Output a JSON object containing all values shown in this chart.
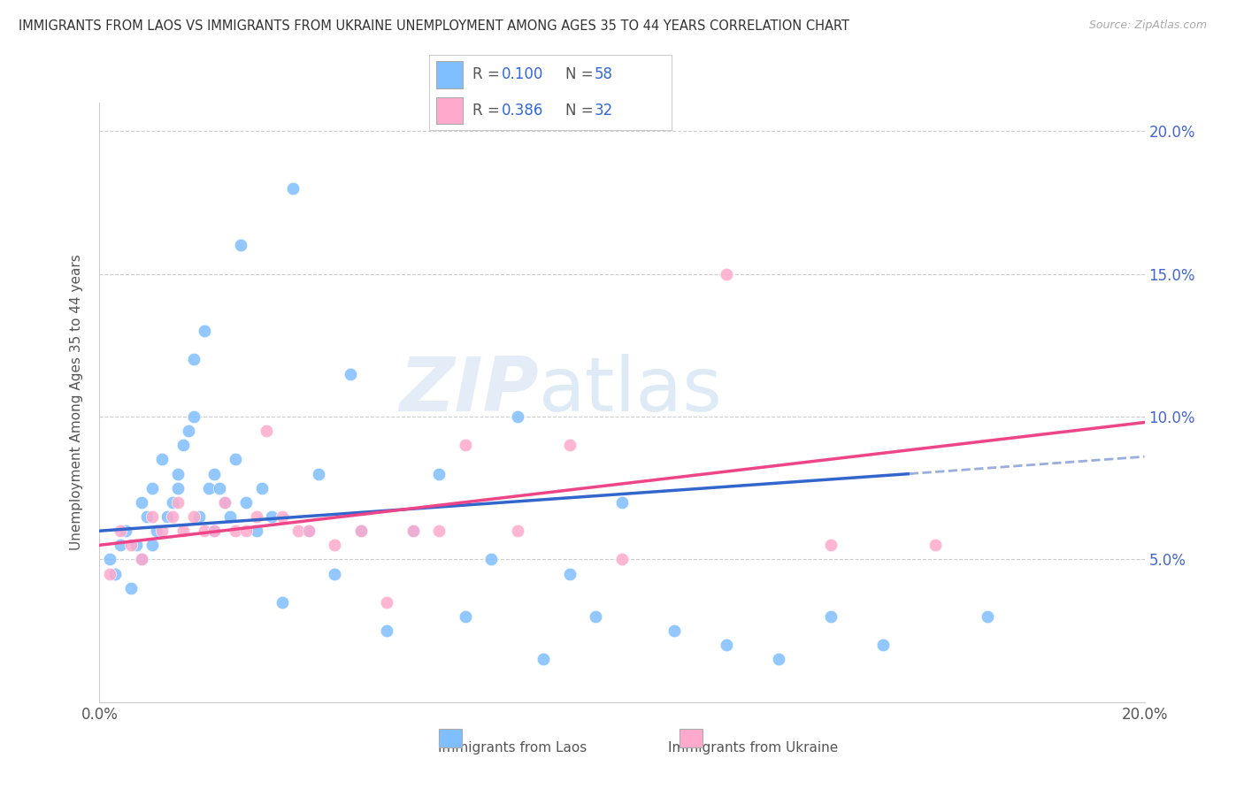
{
  "title": "IMMIGRANTS FROM LAOS VS IMMIGRANTS FROM UKRAINE UNEMPLOYMENT AMONG AGES 35 TO 44 YEARS CORRELATION CHART",
  "source": "Source: ZipAtlas.com",
  "ylabel": "Unemployment Among Ages 35 to 44 years",
  "xlim": [
    0.0,
    0.2
  ],
  "ylim": [
    0.0,
    0.21
  ],
  "laos_color": "#7fbfff",
  "ukraine_color": "#ffaacc",
  "laos_R": 0.1,
  "laos_N": 58,
  "ukraine_R": 0.386,
  "ukraine_N": 32,
  "laos_line_color": "#3366cc",
  "ukraine_line_color": "#ee4488",
  "laos_line_extend_color": "#99aedd",
  "watermark_zip": "ZIP",
  "watermark_atlas": "atlas",
  "laos_x": [
    0.002,
    0.003,
    0.004,
    0.005,
    0.006,
    0.007,
    0.008,
    0.008,
    0.009,
    0.01,
    0.01,
    0.011,
    0.012,
    0.013,
    0.014,
    0.015,
    0.015,
    0.016,
    0.017,
    0.018,
    0.018,
    0.019,
    0.02,
    0.021,
    0.022,
    0.022,
    0.023,
    0.024,
    0.025,
    0.026,
    0.027,
    0.028,
    0.03,
    0.031,
    0.033,
    0.035,
    0.037,
    0.04,
    0.042,
    0.045,
    0.048,
    0.05,
    0.055,
    0.06,
    0.065,
    0.07,
    0.075,
    0.08,
    0.085,
    0.09,
    0.095,
    0.1,
    0.11,
    0.12,
    0.13,
    0.14,
    0.15,
    0.17
  ],
  "laos_y": [
    0.05,
    0.045,
    0.055,
    0.06,
    0.04,
    0.055,
    0.05,
    0.07,
    0.065,
    0.075,
    0.055,
    0.06,
    0.085,
    0.065,
    0.07,
    0.08,
    0.075,
    0.09,
    0.095,
    0.1,
    0.12,
    0.065,
    0.13,
    0.075,
    0.08,
    0.06,
    0.075,
    0.07,
    0.065,
    0.085,
    0.16,
    0.07,
    0.06,
    0.075,
    0.065,
    0.035,
    0.18,
    0.06,
    0.08,
    0.045,
    0.115,
    0.06,
    0.025,
    0.06,
    0.08,
    0.03,
    0.05,
    0.1,
    0.015,
    0.045,
    0.03,
    0.07,
    0.025,
    0.02,
    0.015,
    0.03,
    0.02,
    0.03
  ],
  "ukraine_x": [
    0.002,
    0.004,
    0.006,
    0.008,
    0.01,
    0.012,
    0.014,
    0.015,
    0.016,
    0.018,
    0.02,
    0.022,
    0.024,
    0.026,
    0.028,
    0.03,
    0.032,
    0.035,
    0.038,
    0.04,
    0.045,
    0.05,
    0.055,
    0.06,
    0.065,
    0.07,
    0.08,
    0.09,
    0.1,
    0.12,
    0.14,
    0.16
  ],
  "ukraine_y": [
    0.045,
    0.06,
    0.055,
    0.05,
    0.065,
    0.06,
    0.065,
    0.07,
    0.06,
    0.065,
    0.06,
    0.06,
    0.07,
    0.06,
    0.06,
    0.065,
    0.095,
    0.065,
    0.06,
    0.06,
    0.055,
    0.06,
    0.035,
    0.06,
    0.06,
    0.09,
    0.06,
    0.09,
    0.05,
    0.15,
    0.055,
    0.055
  ],
  "laos_trend_x0": 0.0,
  "laos_trend_y0": 0.06,
  "laos_trend_x1": 0.155,
  "laos_trend_y1": 0.08,
  "laos_trend_x2": 0.2,
  "laos_trend_y2": 0.086,
  "ukraine_trend_x0": 0.0,
  "ukraine_trend_y0": 0.055,
  "ukraine_trend_x1": 0.2,
  "ukraine_trend_y1": 0.098
}
